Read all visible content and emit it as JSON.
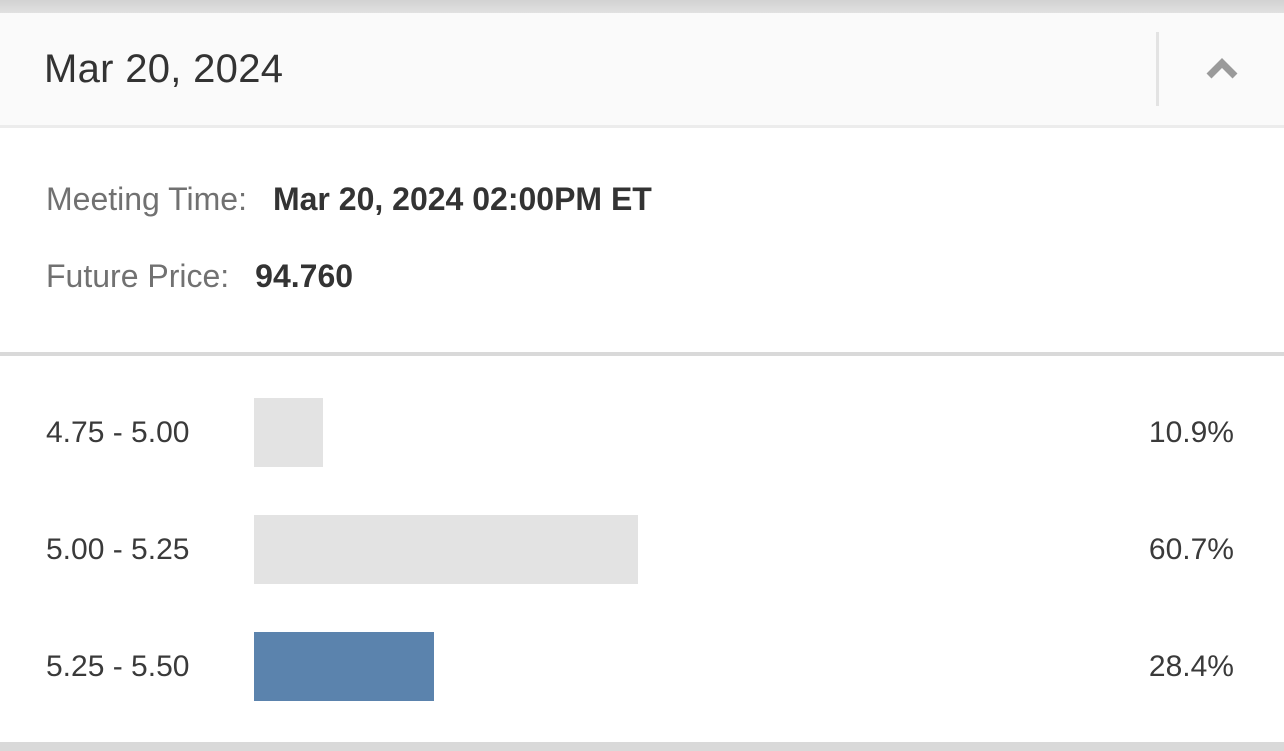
{
  "header": {
    "title": "Mar 20, 2024",
    "collapse_icon": "chevron-up"
  },
  "details": {
    "meeting_time": {
      "label": "Meeting Time:",
      "value": "Mar 20, 2024 02:00PM ET"
    },
    "future_price": {
      "label": "Future Price:",
      "value": "94.760"
    }
  },
  "chart_data": {
    "type": "bar",
    "orientation": "horizontal",
    "categories": [
      "4.75 - 5.00",
      "5.00 - 5.25",
      "5.25 - 5.50"
    ],
    "values": [
      10.9,
      60.7,
      28.4
    ],
    "value_labels": [
      "10.9%",
      "60.7%",
      "28.4%"
    ],
    "xlim": [
      0,
      100
    ],
    "grid": false,
    "legend": false,
    "highlight_index": 2,
    "colors": {
      "bar_default": "#e3e3e3",
      "bar_highlight": "#5b83ad"
    }
  }
}
